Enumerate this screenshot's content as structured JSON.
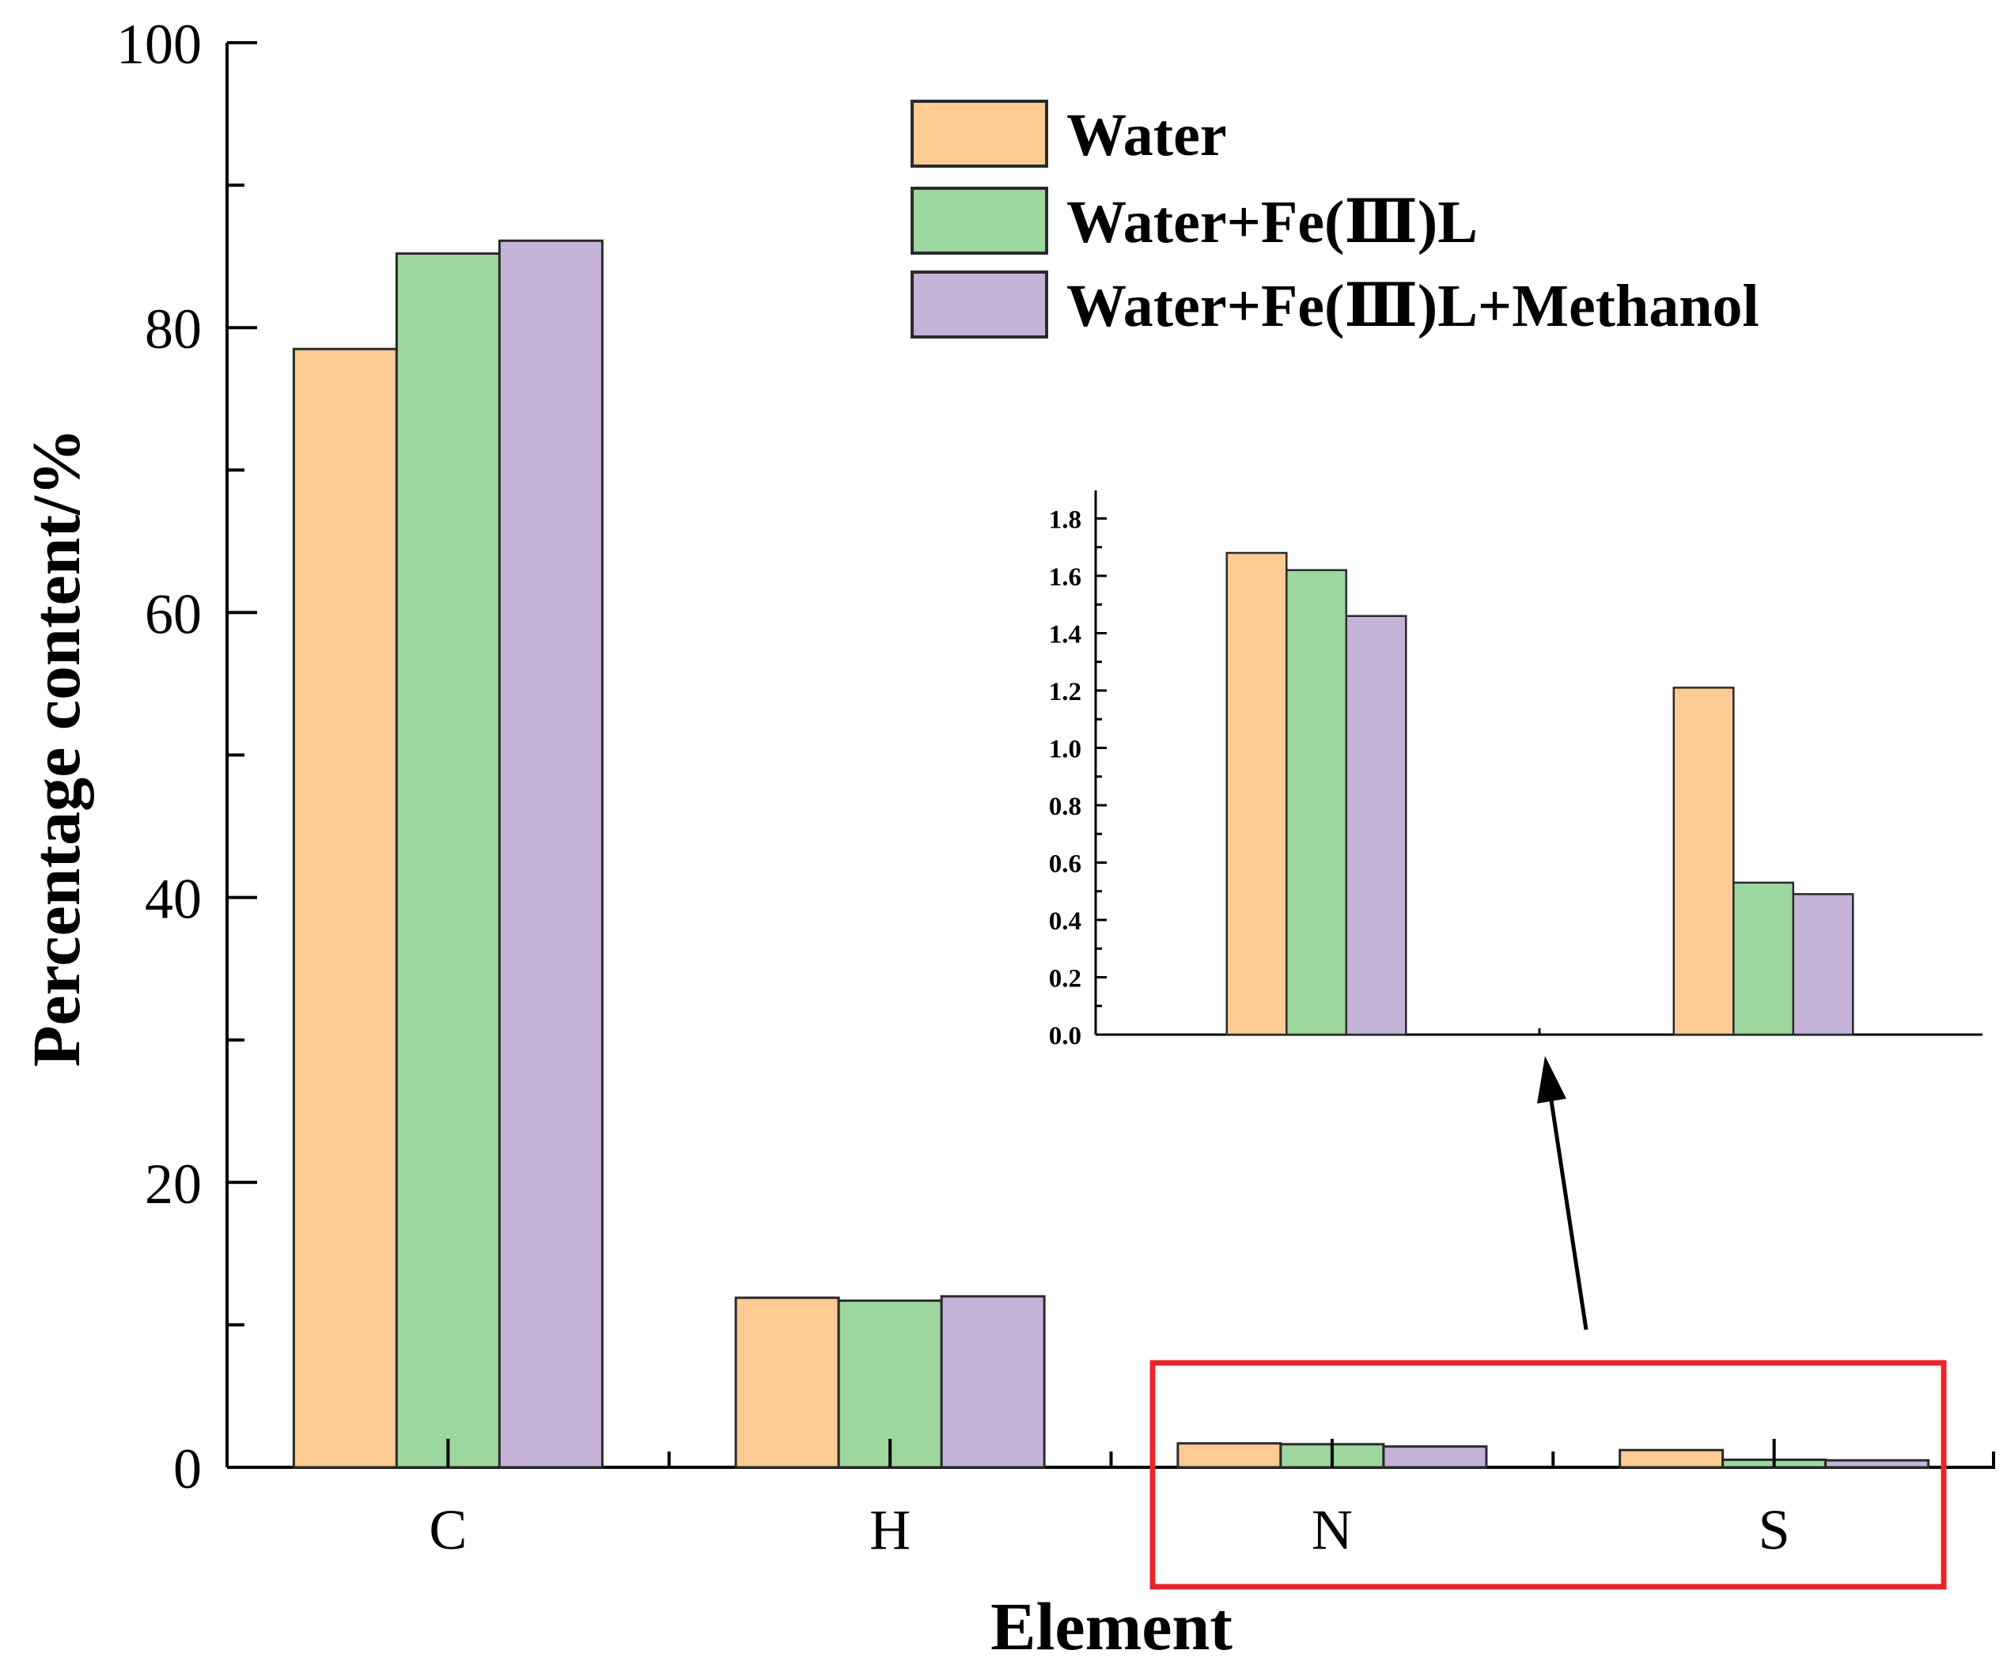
{
  "chart_data": [
    {
      "type": "bar",
      "id": "main",
      "title": "",
      "xlabel": "Element",
      "ylabel": "Percentage content/%",
      "categories": [
        "C",
        "H",
        "N",
        "S"
      ],
      "ylim": [
        0,
        100
      ],
      "yticks": [
        0,
        20,
        40,
        60,
        80,
        100
      ],
      "ytick_labels": [
        "0",
        "20",
        "40",
        "60",
        "80",
        "100"
      ],
      "series": [
        {
          "name": "Water",
          "values": [
            78.5,
            11.9,
            1.68,
            1.21
          ]
        },
        {
          "name": "Water+Fe(Ⅲ)L",
          "values": [
            85.2,
            11.7,
            1.62,
            0.53
          ]
        },
        {
          "name": "Water+Fe(Ⅲ)L+Methanol",
          "values": [
            86.1,
            12.0,
            1.46,
            0.49
          ]
        }
      ],
      "legend": {
        "placement": "top-right",
        "entries": [
          "Water",
          "Water+Fe(Ⅲ)L",
          "Water+Fe(Ⅲ)L+Methanol"
        ]
      },
      "annotation": "red box highlighting N and S groups, arrow pointing to inset"
    },
    {
      "type": "bar",
      "id": "inset",
      "title": "",
      "categories": [
        "N",
        "S"
      ],
      "ylim": [
        0,
        1.9
      ],
      "yticks": [
        0,
        0.2,
        0.4,
        0.6,
        0.8,
        1.0,
        1.2,
        1.4,
        1.6,
        1.8
      ],
      "ytick_labels": [
        "0.0",
        "0.2",
        "0.4",
        "0.6",
        "0.8",
        "1.0",
        "1.2",
        "1.4",
        "1.6",
        "1.8"
      ],
      "series": [
        {
          "name": "Water",
          "values": [
            1.68,
            1.21
          ]
        },
        {
          "name": "Water+Fe(Ⅲ)L",
          "values": [
            1.62,
            0.53
          ]
        },
        {
          "name": "Water+Fe(Ⅲ)L+Methanol",
          "values": [
            1.46,
            0.49
          ]
        }
      ]
    }
  ],
  "colors": {
    "series": [
      "#FDCB93",
      "#9DD79E",
      "#C4B3D7"
    ],
    "highlight_box": "#E8262A",
    "axis": "#000000"
  }
}
